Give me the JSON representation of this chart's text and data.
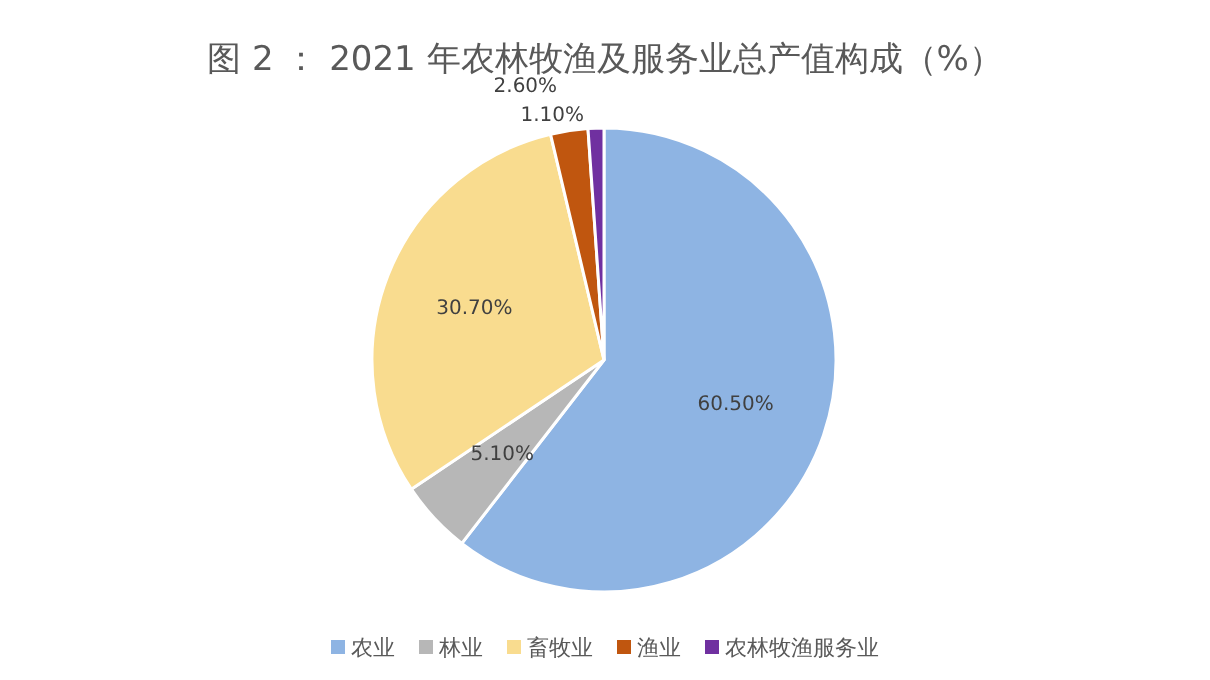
{
  "chart_data": {
    "type": "pie",
    "title": "图 2 ： 2021 年农林牧渔及服务业总产值构成（%）",
    "categories": [
      "农业",
      "林业",
      "畜牧业",
      "渔业",
      "农林牧渔服务业"
    ],
    "values": [
      60.5,
      5.1,
      30.7,
      2.6,
      1.1
    ],
    "value_labels": [
      "60.50%",
      "5.10%",
      "30.70%",
      "2.60%",
      "1.10%"
    ],
    "colors": [
      "#8eb4e3",
      "#b7b7b7",
      "#f9dc8f",
      "#c0560f",
      "#7030a0"
    ],
    "legend": "bottom"
  }
}
